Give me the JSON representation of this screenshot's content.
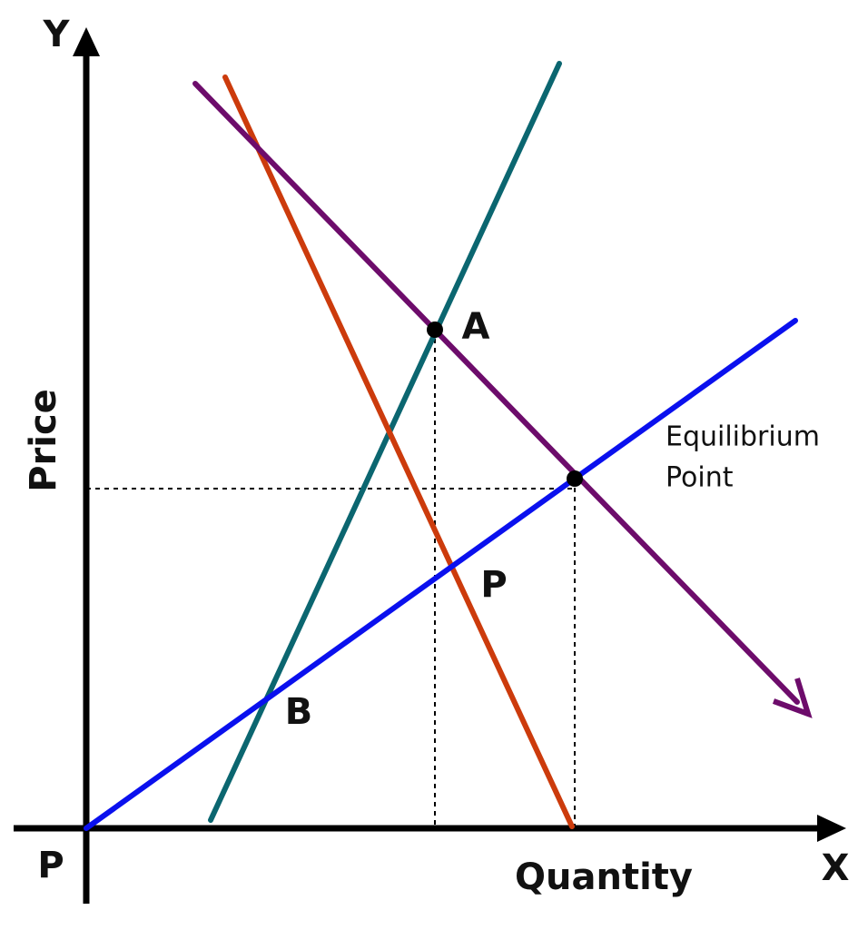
{
  "axes": {
    "y_symbol": "Y",
    "x_symbol": "X",
    "y_label": "Price",
    "x_label": "Quantity",
    "origin": "P"
  },
  "points": {
    "a": "A",
    "b": "B",
    "p": "P"
  },
  "annotation": {
    "lines": [
      "Equilibrium",
      "Point"
    ]
  }
}
